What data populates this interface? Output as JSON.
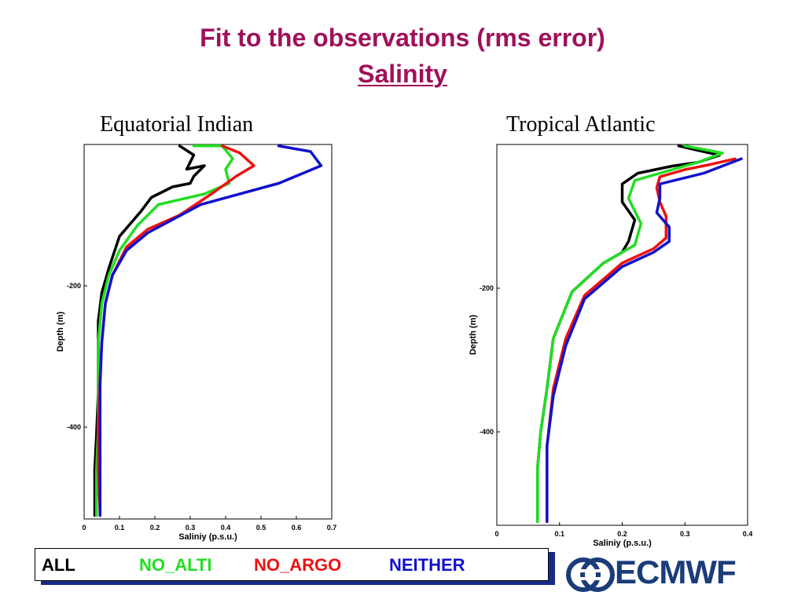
{
  "title": "Fit to the observations (rms error)",
  "subtitle": "Salinity",
  "legend": {
    "items": [
      {
        "label": "ALL",
        "color": "#000000"
      },
      {
        "label": "NO_ALTI",
        "color": "#22dd22"
      },
      {
        "label": "NO_ARGO",
        "color": "#ee1111"
      },
      {
        "label": "NEITHER",
        "color": "#1111cc"
      }
    ]
  },
  "logo": "ECMWF",
  "logo_icon": "ecmwf-logo-icon",
  "chart_data": [
    {
      "type": "line",
      "title": "Equatorial Indian",
      "xlabel": "Saliniy (p.s.u.)",
      "ylabel": "Depth (m)",
      "xlim": [
        0,
        0.7
      ],
      "ylim": [
        -530,
        0
      ],
      "xticks": [
        "0",
        "0.1",
        "0.2",
        "0.3",
        "0.4",
        "0.5",
        "0.6",
        "0.7"
      ],
      "yticks": [
        "-200",
        "-400"
      ],
      "series": [
        {
          "name": "ALL",
          "color": "#000000",
          "x": [
            0.27,
            0.31,
            0.29,
            0.34,
            0.31,
            0.3,
            0.25,
            0.19,
            0.16,
            0.1,
            0.07,
            0.05,
            0.04,
            0.04,
            0.04,
            0.035,
            0.03,
            0.03
          ],
          "y": [
            -2,
            -15,
            -35,
            -30,
            -45,
            -55,
            -60,
            -75,
            -95,
            -130,
            -175,
            -210,
            -250,
            -300,
            -350,
            -410,
            -460,
            -525
          ]
        },
        {
          "name": "NO_ALTI",
          "color": "#22dd22",
          "x": [
            0.31,
            0.39,
            0.42,
            0.4,
            0.41,
            0.34,
            0.21,
            0.15,
            0.1,
            0.07,
            0.05,
            0.04,
            0.04,
            0.04,
            0.035,
            0.035
          ],
          "y": [
            -2,
            -2,
            -20,
            -35,
            -55,
            -70,
            -85,
            -115,
            -150,
            -185,
            -225,
            -280,
            -330,
            -400,
            -460,
            -525
          ]
        },
        {
          "name": "NO_ARGO",
          "color": "#ee1111",
          "x": [
            0.39,
            0.44,
            0.48,
            0.43,
            0.36,
            0.27,
            0.18,
            0.12,
            0.08,
            0.06,
            0.05,
            0.045,
            0.04,
            0.04,
            0.045
          ],
          "y": [
            -2,
            -12,
            -30,
            -45,
            -70,
            -100,
            -120,
            -145,
            -185,
            -225,
            -280,
            -330,
            -400,
            -460,
            -525
          ]
        },
        {
          "name": "NEITHER",
          "color": "#1111cc",
          "x": [
            0.55,
            0.64,
            0.67,
            0.55,
            0.33,
            0.18,
            0.12,
            0.08,
            0.06,
            0.05,
            0.045,
            0.045,
            0.045
          ],
          "y": [
            -2,
            -10,
            -30,
            -55,
            -85,
            -125,
            -150,
            -185,
            -225,
            -280,
            -340,
            -410,
            -525
          ]
        }
      ]
    },
    {
      "type": "line",
      "title": "Tropical Atlantic",
      "xlabel": "Saliniy (p.s.u.)",
      "ylabel": "Depth (m)",
      "xlim": [
        0,
        0.4
      ],
      "ylim": [
        -530,
        0
      ],
      "xticks": [
        "0",
        "0.1",
        "0.2",
        "0.3",
        "0.4"
      ],
      "yticks": [
        "-200",
        "-400"
      ],
      "series": [
        {
          "name": "ALL",
          "color": "#000000",
          "x": [
            0.29,
            0.355,
            0.32,
            0.28,
            0.225,
            0.2,
            0.2,
            0.22,
            0.21,
            0.2,
            0.17,
            0.12,
            0.09,
            0.08,
            0.07,
            0.065,
            0.065
          ],
          "y": [
            -2,
            -15,
            -25,
            -30,
            -40,
            -55,
            -80,
            -105,
            -135,
            -150,
            -165,
            -205,
            -270,
            -340,
            -400,
            -450,
            -525
          ]
        },
        {
          "name": "NO_ALTI",
          "color": "#22dd22",
          "x": [
            0.3,
            0.36,
            0.32,
            0.28,
            0.22,
            0.21,
            0.23,
            0.22,
            0.17,
            0.12,
            0.09,
            0.08,
            0.07,
            0.065,
            0.065
          ],
          "y": [
            -2,
            -12,
            -25,
            -35,
            -50,
            -75,
            -110,
            -140,
            -165,
            -205,
            -270,
            -340,
            -400,
            -450,
            -525
          ]
        },
        {
          "name": "NO_ARGO",
          "color": "#ee1111",
          "x": [
            0.38,
            0.34,
            0.3,
            0.26,
            0.255,
            0.26,
            0.27,
            0.27,
            0.25,
            0.2,
            0.14,
            0.11,
            0.09,
            0.08,
            0.08
          ],
          "y": [
            -20,
            -28,
            -35,
            -45,
            -60,
            -80,
            -100,
            -130,
            -145,
            -165,
            -210,
            -270,
            -340,
            -420,
            -525
          ]
        },
        {
          "name": "NEITHER",
          "color": "#1111cc",
          "x": [
            0.39,
            0.33,
            0.26,
            0.26,
            0.255,
            0.275,
            0.275,
            0.25,
            0.2,
            0.14,
            0.11,
            0.09,
            0.08,
            0.08
          ],
          "y": [
            -20,
            -40,
            -55,
            -75,
            -95,
            -115,
            -135,
            -150,
            -170,
            -215,
            -280,
            -350,
            -420,
            -525
          ]
        }
      ]
    }
  ]
}
